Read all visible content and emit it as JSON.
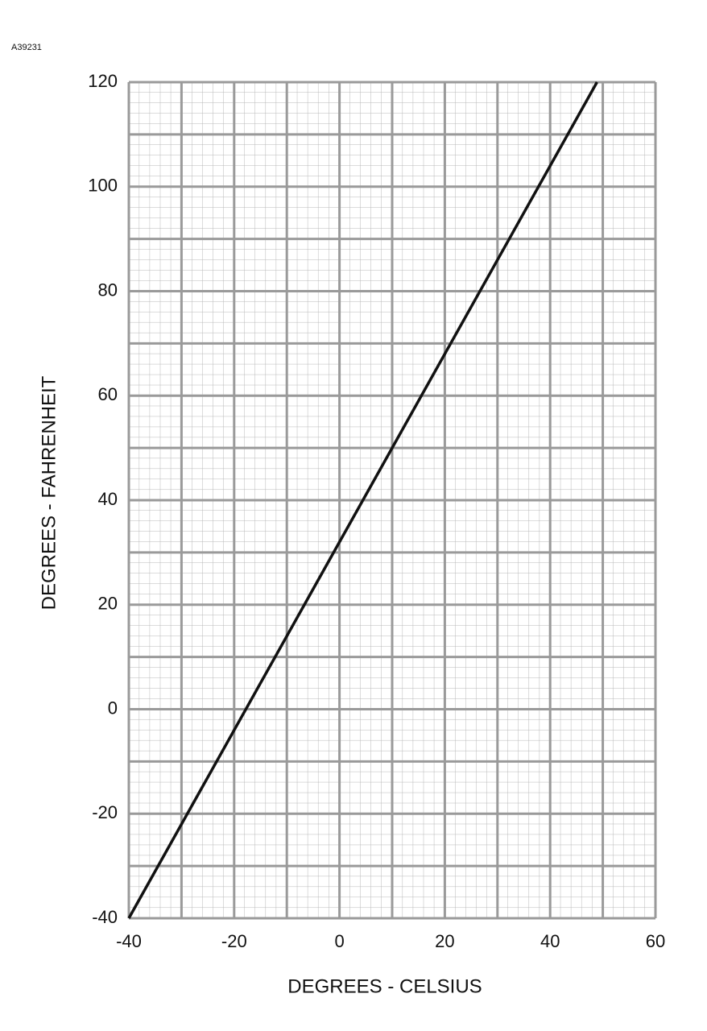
{
  "code": "A39231",
  "chart_data": {
    "type": "line",
    "xlabel": "DEGREES - CELSIUS",
    "ylabel": "DEGREES - FAHRENHEIT",
    "x": [
      -40,
      0,
      10,
      48.9
    ],
    "series": [
      {
        "color": "#111111",
        "values": [
          -40,
          32,
          50,
          120
        ]
      }
    ],
    "xlim": [
      -40,
      60
    ],
    "ylim": [
      -40,
      120
    ],
    "xticks": [
      -40,
      -20,
      0,
      20,
      40,
      60
    ],
    "yticks": [
      -40,
      -20,
      0,
      20,
      40,
      60,
      80,
      100,
      120
    ],
    "xgrid": [
      -40,
      -30,
      -20,
      -10,
      0,
      10,
      20,
      30,
      40,
      50,
      60
    ],
    "ygrid": [
      -40,
      -30,
      -20,
      -10,
      0,
      10,
      20,
      30,
      40,
      50,
      60,
      70,
      80,
      90,
      100,
      110,
      120
    ],
    "grid": true
  }
}
